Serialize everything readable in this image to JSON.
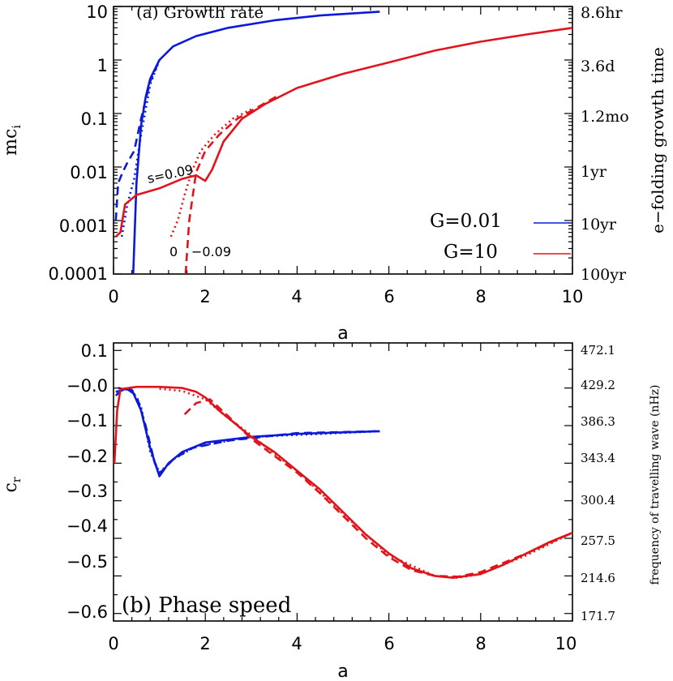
{
  "chart_data": [
    {
      "type": "line",
      "title": "(a) Growth rate",
      "xlabel": "a",
      "ylabel": "mc",
      "ylabel_subscript": "i",
      "yscale": "log",
      "xlim": [
        0,
        10
      ],
      "ylim": [
        0.0001,
        10
      ],
      "x_ticks": [
        "0",
        "2",
        "4",
        "6",
        "8",
        "10"
      ],
      "y_ticks": [
        "10",
        "1",
        "0.1",
        "0.01",
        "0.001",
        "0.0001"
      ],
      "right_axis_label": "e−folding growth time",
      "right_ticks": [
        "8.6hr",
        "3.6d",
        "1.2mo",
        "1yr",
        "10yr",
        "100yr"
      ],
      "legend": [
        {
          "label": "G=0.01",
          "color": "#0b1ad8"
        },
        {
          "label": "G=10",
          "color": "#e0141a"
        }
      ],
      "annotations": [
        "s=0.09",
        "0",
        "−0.09"
      ],
      "series": [
        {
          "name": "G=0.01",
          "color": "#0b1ad8",
          "style": "solid",
          "x": [
            0.43,
            0.5,
            0.6,
            0.7,
            0.8,
            1.0,
            1.3,
            1.8,
            2.5,
            3.5,
            4.5,
            5.8
          ],
          "y": [
            0.0001,
            0.005,
            0.06,
            0.2,
            0.45,
            1.0,
            1.8,
            2.8,
            4.0,
            5.5,
            6.8,
            8.0
          ]
        },
        {
          "name": "G=0.01 s=0.09",
          "color": "#0b1ad8",
          "style": "dashed",
          "x": [
            0.05,
            0.1,
            0.2,
            0.3,
            0.45,
            0.6,
            0.8,
            1.0
          ],
          "y": [
            0.001,
            0.005,
            0.008,
            0.012,
            0.02,
            0.08,
            0.4,
            1.0
          ]
        },
        {
          "name": "G=0.01 s=-0.09",
          "color": "#0b1ad8",
          "style": "dotted",
          "x": [
            0.18,
            0.3,
            0.45,
            0.6,
            0.8,
            1.0
          ],
          "y": [
            0.0005,
            0.002,
            0.006,
            0.04,
            0.35,
            1.0
          ]
        },
        {
          "name": "G=10",
          "color": "#e0141a",
          "style": "solid",
          "x": [
            0.05,
            0.15,
            0.25,
            0.5,
            1.0,
            1.5,
            1.8,
            2.0,
            2.15,
            2.4,
            2.8,
            3.3,
            4.0,
            5.0,
            6.0,
            7.0,
            8.0,
            9.0,
            10.0
          ],
          "y": [
            0.0005,
            0.0006,
            0.002,
            0.003,
            0.004,
            0.006,
            0.007,
            0.0055,
            0.009,
            0.03,
            0.08,
            0.15,
            0.3,
            0.55,
            0.9,
            1.5,
            2.2,
            3.0,
            4.0
          ]
        },
        {
          "name": "G=10 s=-0.09",
          "color": "#e0141a",
          "style": "dashed",
          "x": [
            1.57,
            1.65,
            1.8,
            2.0,
            2.3,
            2.7,
            3.2,
            3.6
          ],
          "y": [
            0.0001,
            0.001,
            0.008,
            0.02,
            0.04,
            0.08,
            0.14,
            0.22
          ]
        },
        {
          "name": "G=10 s=0",
          "color": "#e0141a",
          "style": "dotted",
          "x": [
            1.25,
            1.4,
            1.55,
            1.7,
            1.9,
            2.2,
            2.6,
            3.0
          ],
          "y": [
            0.0005,
            0.001,
            0.003,
            0.008,
            0.02,
            0.04,
            0.08,
            0.12
          ]
        }
      ]
    },
    {
      "type": "line",
      "title": "(b) Phase speed",
      "xlabel": "a",
      "ylabel": "c",
      "ylabel_subscript": "r",
      "xlim": [
        0,
        10
      ],
      "ylim": [
        -0.62,
        0.12
      ],
      "x_ticks": [
        "0",
        "2",
        "4",
        "6",
        "8",
        "10"
      ],
      "y_ticks": [
        "0.1",
        "−0.0",
        "−0.1",
        "−0.2",
        "−0.3",
        "−0.4",
        "−0.5",
        "−0.6"
      ],
      "right_axis_label": "frequency of travelling wave (nHz)",
      "right_ticks": [
        "472.1",
        "429.2",
        "386.3",
        "343.4",
        "300.4",
        "257.5",
        "214.6",
        "171.7"
      ],
      "series": [
        {
          "name": "G=0.01",
          "color": "#0b1ad8",
          "style": "solid",
          "x": [
            0.05,
            0.2,
            0.4,
            0.6,
            0.8,
            1.0,
            1.2,
            1.5,
            2.0,
            3.0,
            4.0,
            5.0,
            5.8
          ],
          "y": [
            -0.02,
            -0.003,
            -0.005,
            -0.06,
            -0.16,
            -0.235,
            -0.2,
            -0.17,
            -0.145,
            -0.13,
            -0.122,
            -0.118,
            -0.115
          ]
        },
        {
          "name": "G=0.01 s=0.09",
          "color": "#0b1ad8",
          "style": "dashed",
          "x": [
            0.05,
            0.3,
            0.5,
            0.7,
            0.9,
            1.0,
            1.3,
            1.7,
            2.5,
            4.0,
            5.8
          ],
          "y": [
            -0.01,
            -0.003,
            -0.02,
            -0.1,
            -0.2,
            -0.228,
            -0.19,
            -0.16,
            -0.14,
            -0.12,
            -0.115
          ]
        },
        {
          "name": "G=0.01 s=-0.09",
          "color": "#0b1ad8",
          "style": "dotted",
          "x": [
            0.1,
            0.4,
            0.6,
            0.8,
            1.0,
            1.3,
            1.8,
            3.0,
            5.8
          ],
          "y": [
            0.0,
            -0.004,
            -0.05,
            -0.17,
            -0.225,
            -0.19,
            -0.155,
            -0.13,
            -0.115
          ]
        },
        {
          "name": "G=10",
          "color": "#e0141a",
          "style": "solid",
          "x": [
            0.02,
            0.08,
            0.15,
            0.5,
            1.0,
            1.5,
            1.8,
            2.0,
            2.3,
            2.6,
            3.0,
            3.5,
            4.0,
            4.5,
            5.0,
            5.5,
            6.0,
            6.5,
            7.0,
            7.4,
            8.0,
            8.5,
            9.0,
            9.5,
            10.0
          ],
          "y": [
            -0.2,
            -0.06,
            -0.003,
            0.003,
            0.003,
            0.0,
            -0.01,
            -0.025,
            -0.06,
            -0.09,
            -0.13,
            -0.17,
            -0.22,
            -0.27,
            -0.33,
            -0.39,
            -0.44,
            -0.48,
            -0.5,
            -0.505,
            -0.495,
            -0.47,
            -0.44,
            -0.41,
            -0.385
          ]
        },
        {
          "name": "G=10 s=-0.09",
          "color": "#e0141a",
          "style": "dashed",
          "x": [
            1.55,
            1.8,
            2.1,
            2.5,
            3.0,
            3.5,
            4.0,
            4.5,
            5.0,
            5.5,
            6.0,
            6.5,
            7.0,
            7.5,
            8.0,
            9.0,
            10.0
          ],
          "y": [
            -0.07,
            -0.04,
            -0.03,
            -0.075,
            -0.135,
            -0.18,
            -0.225,
            -0.28,
            -0.34,
            -0.4,
            -0.45,
            -0.485,
            -0.5,
            -0.502,
            -0.49,
            -0.44,
            -0.385
          ]
        },
        {
          "name": "G=10 s=0",
          "color": "#e0141a",
          "style": "dotted",
          "x": [
            1.0,
            1.5,
            2.0,
            2.5,
            3.0,
            3.5,
            4.0,
            5.0,
            6.0,
            7.0,
            7.5,
            8.0,
            9.0,
            10.0
          ],
          "y": [
            -0.002,
            -0.008,
            -0.03,
            -0.08,
            -0.125,
            -0.175,
            -0.22,
            -0.335,
            -0.445,
            -0.5,
            -0.505,
            -0.495,
            -0.445,
            -0.385
          ]
        }
      ]
    }
  ]
}
